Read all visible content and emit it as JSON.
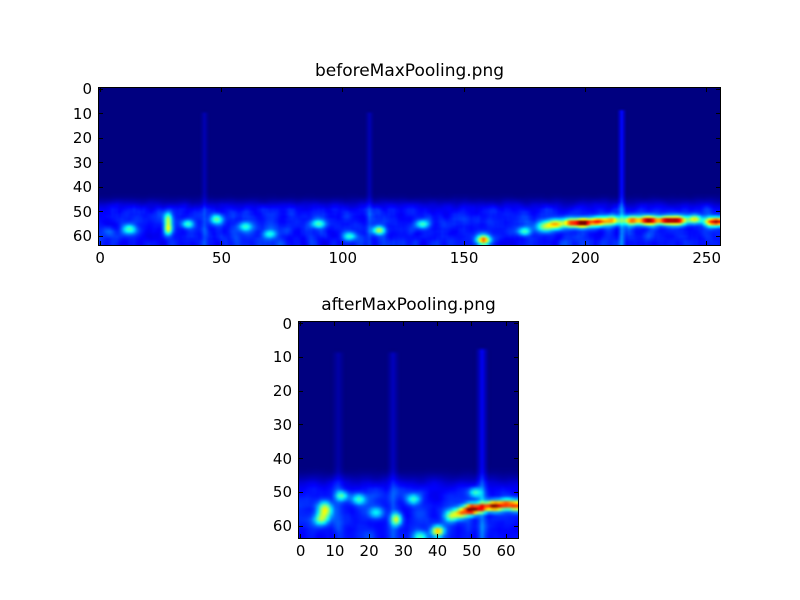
{
  "figure": {
    "background": "#ffffff",
    "text_color": "#000000",
    "frame_color": "#000000"
  },
  "chart_data": [
    {
      "type": "heatmap",
      "title": "beforeMaxPooling.png",
      "xlabel": "",
      "ylabel": "",
      "x_ticks": [
        0,
        50,
        100,
        150,
        200,
        250
      ],
      "y_ticks": [
        0,
        10,
        20,
        30,
        40,
        50,
        60
      ],
      "x_range": [
        0,
        255
      ],
      "y_range": [
        0,
        63
      ],
      "y_direction": "down",
      "grid": false,
      "legend": "none",
      "colormap": "jet",
      "colormap_anchors": {
        "low": "#000080",
        "blue": "#0000ff",
        "cyan": "#00ffff",
        "yellow": "#ffff00",
        "red": "#ff0000",
        "high": "#800000"
      },
      "cols": 256,
      "rows": 64,
      "band_start_row": 47,
      "noise_floor": 0.05,
      "noise_amp": 0.18,
      "speckle_prob": 0.05,
      "speckle_amp": 0.22,
      "vertical_lines": [
        {
          "x": 43,
          "amp": 0.05,
          "from_row": 10
        },
        {
          "x": 111,
          "amp": 0.05,
          "from_row": 10
        },
        {
          "x": 215,
          "amp": 0.13,
          "from_row": 9
        }
      ],
      "hotspots": [
        {
          "x": 183,
          "y": 56,
          "sx": 2.5,
          "sy": 1.6,
          "amp": 0.35
        },
        {
          "x": 188,
          "y": 55,
          "sx": 2.5,
          "sy": 1.4,
          "amp": 0.5
        },
        {
          "x": 194,
          "y": 54.5,
          "sx": 2.0,
          "sy": 1.3,
          "amp": 0.6
        },
        {
          "x": 199,
          "y": 54.5,
          "sx": 2.2,
          "sy": 1.2,
          "amp": 0.95
        },
        {
          "x": 205,
          "y": 54,
          "sx": 2.5,
          "sy": 1.3,
          "amp": 0.65
        },
        {
          "x": 211,
          "y": 53.5,
          "sx": 2.5,
          "sy": 1.3,
          "amp": 0.55
        },
        {
          "x": 219,
          "y": 53.5,
          "sx": 2.2,
          "sy": 1.3,
          "amp": 0.6
        },
        {
          "x": 226,
          "y": 53.5,
          "sx": 2.8,
          "sy": 1.3,
          "amp": 0.9
        },
        {
          "x": 233,
          "y": 53.5,
          "sx": 2.2,
          "sy": 1.2,
          "amp": 0.7
        },
        {
          "x": 238,
          "y": 53.5,
          "sx": 2.5,
          "sy": 1.3,
          "amp": 0.8
        },
        {
          "x": 245,
          "y": 53,
          "sx": 2.0,
          "sy": 1.2,
          "amp": 0.5
        },
        {
          "x": 252,
          "y": 54,
          "sx": 2.2,
          "sy": 1.3,
          "amp": 0.65
        },
        {
          "x": 255,
          "y": 54,
          "sx": 1.5,
          "sy": 1.2,
          "amp": 0.5
        },
        {
          "x": 28,
          "y": 53,
          "sx": 1.2,
          "sy": 2.0,
          "amp": 0.4
        },
        {
          "x": 28,
          "y": 57,
          "sx": 1.2,
          "sy": 1.6,
          "amp": 0.42
        },
        {
          "x": 158,
          "y": 61.5,
          "sx": 2.0,
          "sy": 1.3,
          "amp": 0.6
        },
        {
          "x": 115,
          "y": 57.5,
          "sx": 1.8,
          "sy": 1.2,
          "amp": 0.42
        },
        {
          "x": 90,
          "y": 55,
          "sx": 2.0,
          "sy": 1.2,
          "amp": 0.3
        },
        {
          "x": 48,
          "y": 53,
          "sx": 1.8,
          "sy": 1.4,
          "amp": 0.32
        },
        {
          "x": 70,
          "y": 59,
          "sx": 2.0,
          "sy": 1.2,
          "amp": 0.26
        },
        {
          "x": 103,
          "y": 60,
          "sx": 2.0,
          "sy": 1.2,
          "amp": 0.26
        },
        {
          "x": 133,
          "y": 55,
          "sx": 2.0,
          "sy": 1.2,
          "amp": 0.28
        },
        {
          "x": 175,
          "y": 58,
          "sx": 2.0,
          "sy": 1.2,
          "amp": 0.3
        },
        {
          "x": 60,
          "y": 56,
          "sx": 2.0,
          "sy": 1.3,
          "amp": 0.28
        },
        {
          "x": 12,
          "y": 57,
          "sx": 2.0,
          "sy": 1.4,
          "amp": 0.3
        },
        {
          "x": 36,
          "y": 55,
          "sx": 1.8,
          "sy": 1.2,
          "amp": 0.3
        }
      ],
      "description": "Activation map 256 wide x 64 tall, jet colormap on navy background; noisy blue band in rows 47-63 with a bright yellow-red streak at rows 52-56 spanning columns 183-255 (dark red cores near x=199 and x=226) and faint vertical lines at x=43, 111, 215."
    },
    {
      "type": "heatmap",
      "title": "afterMaxPooling.png",
      "xlabel": "",
      "ylabel": "",
      "x_ticks": [
        0,
        10,
        20,
        30,
        40,
        50,
        60
      ],
      "y_ticks": [
        0,
        10,
        20,
        30,
        40,
        50,
        60
      ],
      "x_range": [
        0,
        63
      ],
      "y_range": [
        0,
        63
      ],
      "y_direction": "down",
      "grid": false,
      "legend": "none",
      "colormap": "jet",
      "colormap_anchors": {
        "low": "#000080",
        "blue": "#0000ff",
        "cyan": "#00ffff",
        "yellow": "#ffff00",
        "red": "#ff0000",
        "high": "#800000"
      },
      "cols": 64,
      "rows": 64,
      "band_start_row": 47,
      "noise_floor": 0.05,
      "noise_amp": 0.18,
      "speckle_prob": 0.05,
      "speckle_amp": 0.22,
      "vertical_lines": [
        {
          "x": 11,
          "amp": 0.04,
          "from_row": 9
        },
        {
          "x": 27,
          "amp": 0.06,
          "from_row": 9
        },
        {
          "x": 53,
          "amp": 0.11,
          "from_row": 8
        }
      ],
      "hotspots": [
        {
          "x": 50,
          "y": 55,
          "sx": 1.4,
          "sy": 1.1,
          "amp": 0.95
        },
        {
          "x": 47,
          "y": 56,
          "sx": 1.4,
          "sy": 1.1,
          "amp": 0.55
        },
        {
          "x": 53,
          "y": 54.5,
          "sx": 1.3,
          "sy": 1.0,
          "amp": 0.6
        },
        {
          "x": 56.5,
          "y": 54,
          "sx": 1.5,
          "sy": 1.0,
          "amp": 0.85
        },
        {
          "x": 60,
          "y": 53.5,
          "sx": 1.5,
          "sy": 1.0,
          "amp": 0.65
        },
        {
          "x": 63,
          "y": 54,
          "sx": 1.3,
          "sy": 1.1,
          "amp": 0.6
        },
        {
          "x": 44,
          "y": 57,
          "sx": 1.4,
          "sy": 1.2,
          "amp": 0.4
        },
        {
          "x": 7,
          "y": 55,
          "sx": 1.4,
          "sy": 1.6,
          "amp": 0.45
        },
        {
          "x": 6,
          "y": 58,
          "sx": 1.4,
          "sy": 1.2,
          "amp": 0.35
        },
        {
          "x": 28,
          "y": 58,
          "sx": 1.1,
          "sy": 1.3,
          "amp": 0.45
        },
        {
          "x": 40,
          "y": 61.5,
          "sx": 1.2,
          "sy": 1.0,
          "amp": 0.55
        },
        {
          "x": 17,
          "y": 52,
          "sx": 1.4,
          "sy": 1.1,
          "amp": 0.3
        },
        {
          "x": 33,
          "y": 52,
          "sx": 1.4,
          "sy": 1.1,
          "amp": 0.3
        },
        {
          "x": 12,
          "y": 51,
          "sx": 1.3,
          "sy": 1.0,
          "amp": 0.3
        },
        {
          "x": 22,
          "y": 56,
          "sx": 1.5,
          "sy": 1.2,
          "amp": 0.25
        },
        {
          "x": 35,
          "y": 63,
          "sx": 1.5,
          "sy": 1.0,
          "amp": 0.3
        },
        {
          "x": 51,
          "y": 50,
          "sx": 1.2,
          "sy": 1.0,
          "amp": 0.3
        }
      ],
      "description": "Max-pooled activation map 64x64, jet colormap on navy background; noisy blue band in rows 47-63 with bright yellow-red streak at rows 52-56 spanning columns 44-63 (dark red core near x=50, red near x=56-57), green blob near x=7, faint vertical lines at x=11, 27, 53."
    }
  ]
}
